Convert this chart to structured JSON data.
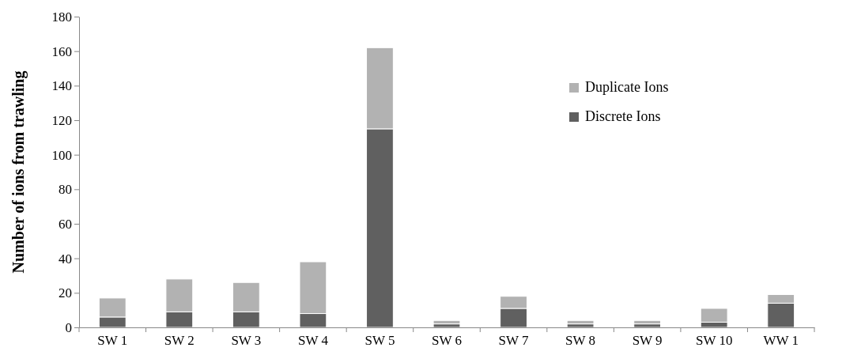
{
  "chart_data": {
    "type": "bar",
    "stacked": true,
    "ylabel": "Number of ions from trawling",
    "categories": [
      "SW 1",
      "SW 2",
      "SW 3",
      "SW 4",
      "SW 5",
      "SW 6",
      "SW 7",
      "SW 8",
      "SW 9",
      "SW 10",
      "WW 1"
    ],
    "series": [
      {
        "name": "Discrete Ions",
        "color": "#606060",
        "values": [
          6,
          9,
          9,
          8,
          115,
          2,
          11,
          2,
          2,
          3,
          14
        ]
      },
      {
        "name": "Duplicate Ions",
        "color": "#b2b2b2",
        "values": [
          11,
          19,
          17,
          30,
          47,
          2,
          7,
          2,
          2,
          8,
          5
        ]
      }
    ],
    "ylim": [
      0,
      180
    ],
    "yticks": [
      0,
      20,
      40,
      60,
      80,
      100,
      120,
      140,
      160,
      180
    ],
    "grid": false,
    "legend": "top right"
  }
}
